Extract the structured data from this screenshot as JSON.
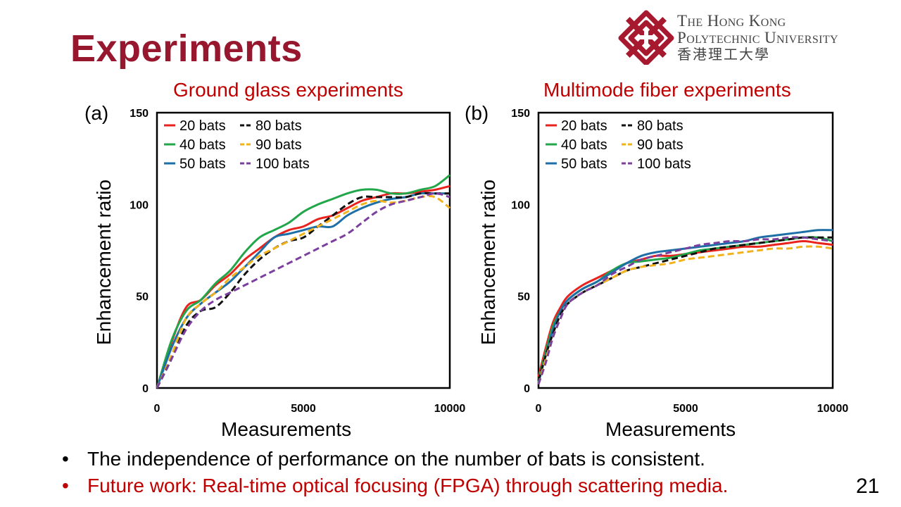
{
  "slide": {
    "title": "Experiments",
    "page_number": "21",
    "logo": {
      "line1": "The Hong Kong",
      "line2": "Polytechnic University",
      "line3": "香港理工大學",
      "color": "#A6192E"
    },
    "bullets": [
      {
        "text": "The independence of performance on the number of bats is consistent.",
        "color": "#000000"
      },
      {
        "text": "Future work: Real-time optical focusing (FPGA) through scattering media.",
        "color": "#C00000"
      }
    ],
    "bullet_symbol": "•"
  },
  "chart_data": [
    {
      "type": "line",
      "panel_label": "(a)",
      "title": "Ground glass experiments",
      "xlabel": "Measurements",
      "ylabel": "Enhancement ratio",
      "xlim": [
        0,
        10000
      ],
      "ylim": [
        0,
        150
      ],
      "xticks": [
        0,
        5000,
        10000
      ],
      "yticks": [
        0,
        50,
        100,
        150
      ],
      "legend_position": "top-left",
      "grid": false,
      "x": [
        0,
        500,
        1000,
        1500,
        2000,
        2500,
        3000,
        3500,
        4000,
        4500,
        5000,
        5500,
        6000,
        6500,
        7000,
        7500,
        8000,
        8500,
        9000,
        9500,
        10000
      ],
      "series": [
        {
          "name": "20 bats",
          "color": "#E8231E",
          "dash": false,
          "values": [
            0,
            25,
            44,
            48,
            56,
            62,
            70,
            76,
            82,
            86,
            88,
            92,
            94,
            98,
            102,
            104,
            106,
            106,
            107,
            108,
            110
          ]
        },
        {
          "name": "40 bats",
          "color": "#22A64A",
          "dash": false,
          "values": [
            0,
            26,
            42,
            48,
            57,
            64,
            74,
            82,
            86,
            90,
            96,
            100,
            103,
            106,
            108,
            108,
            106,
            106,
            108,
            110,
            116
          ]
        },
        {
          "name": "50 bats",
          "color": "#1F6FA7",
          "dash": false,
          "values": [
            0,
            22,
            38,
            46,
            52,
            58,
            66,
            74,
            82,
            84,
            86,
            88,
            88,
            94,
            98,
            101,
            103,
            104,
            106,
            106,
            106
          ]
        },
        {
          "name": "80 bats",
          "color": "#111111",
          "dash": true,
          "values": [
            0,
            16,
            34,
            42,
            44,
            52,
            62,
            70,
            76,
            80,
            82,
            88,
            94,
            100,
            104,
            104,
            104,
            104,
            106,
            106,
            106
          ]
        },
        {
          "name": "90 bats",
          "color": "#F2B21B",
          "dash": true,
          "values": [
            0,
            18,
            38,
            46,
            52,
            60,
            66,
            72,
            76,
            80,
            84,
            88,
            92,
            96,
            100,
            102,
            101,
            102,
            104,
            104,
            98
          ]
        },
        {
          "name": "100 bats",
          "color": "#7B3F9E",
          "dash": true,
          "values": [
            0,
            16,
            32,
            42,
            48,
            52,
            56,
            60,
            64,
            68,
            72,
            76,
            80,
            84,
            90,
            96,
            100,
            102,
            104,
            106,
            104
          ]
        }
      ]
    },
    {
      "type": "line",
      "panel_label": "(b)",
      "title": "Multimode fiber experiments",
      "xlabel": "Measurements",
      "ylabel": "Enhancement ratio",
      "xlim": [
        0,
        10000
      ],
      "ylim": [
        0,
        150
      ],
      "xticks": [
        0,
        5000,
        10000
      ],
      "yticks": [
        0,
        50,
        100,
        150
      ],
      "legend_position": "top-left",
      "grid": false,
      "x": [
        0,
        250,
        500,
        750,
        1000,
        1500,
        2000,
        2500,
        3000,
        3500,
        4000,
        4500,
        5000,
        5500,
        6000,
        6500,
        7000,
        7500,
        8000,
        8500,
        9000,
        9500,
        10000
      ],
      "series": [
        {
          "name": "20 bats",
          "color": "#E8231E",
          "dash": false,
          "values": [
            6,
            22,
            36,
            44,
            50,
            56,
            60,
            64,
            68,
            70,
            72,
            72,
            73,
            74,
            75,
            76,
            77,
            77,
            78,
            79,
            80,
            79,
            78
          ]
        },
        {
          "name": "40 bats",
          "color": "#22A64A",
          "dash": false,
          "values": [
            4,
            20,
            34,
            42,
            48,
            54,
            58,
            64,
            68,
            69,
            70,
            71,
            73,
            75,
            76,
            77,
            78,
            79,
            80,
            81,
            82,
            82,
            80
          ]
        },
        {
          "name": "50 bats",
          "color": "#1F6FA7",
          "dash": false,
          "values": [
            3,
            18,
            32,
            42,
            48,
            54,
            58,
            63,
            68,
            72,
            74,
            75,
            76,
            77,
            78,
            79,
            80,
            82,
            83,
            84,
            85,
            86,
            86
          ]
        },
        {
          "name": "80 bats",
          "color": "#111111",
          "dash": true,
          "values": [
            4,
            18,
            30,
            40,
            46,
            52,
            56,
            60,
            64,
            66,
            68,
            70,
            72,
            74,
            76,
            77,
            78,
            79,
            80,
            81,
            82,
            82,
            82
          ]
        },
        {
          "name": "90 bats",
          "color": "#F2B21B",
          "dash": true,
          "values": [
            2,
            16,
            28,
            38,
            46,
            52,
            56,
            60,
            64,
            66,
            67,
            68,
            70,
            71,
            72,
            73,
            74,
            75,
            76,
            76,
            77,
            77,
            76
          ]
        },
        {
          "name": "100 bats",
          "color": "#7B3F9E",
          "dash": true,
          "values": [
            2,
            14,
            28,
            38,
            46,
            52,
            56,
            62,
            66,
            70,
            72,
            74,
            76,
            78,
            79,
            80,
            80,
            81,
            81,
            82,
            82,
            81,
            80
          ]
        }
      ]
    }
  ]
}
